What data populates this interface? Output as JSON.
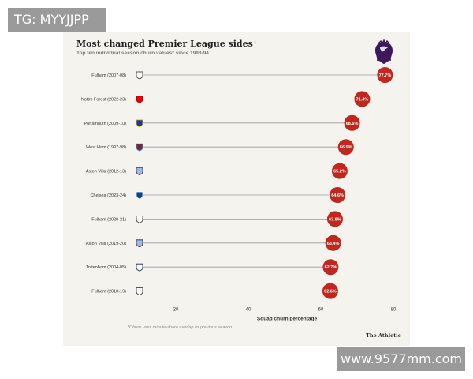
{
  "watermarks": {
    "top_left": "TG: MYYJJPP",
    "bottom_right": "www.9577mm.com"
  },
  "chart_data": {
    "type": "dot",
    "title": "Most changed Premier League sides",
    "subtitle": "Top ten individual season churn values* since 1993-94",
    "xlabel": "Squad churn percentage",
    "xlim": [
      0,
      80
    ],
    "xticks": [
      20,
      40,
      60,
      80
    ],
    "categories": [
      "Fulham (2007-08)",
      "Nottm Forest (2022-23)",
      "Portsmouth (2009-10)",
      "West Ham (1997-98)",
      "Aston Villa (2012-13)",
      "Chelsea (2023-24)",
      "Fulham (2020-21)",
      "Aston Villa (2019-20)",
      "Tottenham (2004-05)",
      "Fulham (2018-19)"
    ],
    "values": [
      77.7,
      71.4,
      68.6,
      66.9,
      65.2,
      64.6,
      63.9,
      63.4,
      62.7,
      62.6
    ],
    "value_labels": [
      "77.7%",
      "71.4%",
      "68.6%",
      "66.9%",
      "65.2%",
      "64.6%",
      "63.9%",
      "63.4%",
      "62.7%",
      "62.6%"
    ],
    "crests": [
      "fulham-crest-icon",
      "nottm-forest-crest-icon",
      "portsmouth-crest-icon",
      "west-ham-crest-icon",
      "aston-villa-crest-icon",
      "chelsea-crest-icon",
      "fulham-crest-icon",
      "aston-villa-crest-icon",
      "tottenham-crest-icon",
      "fulham-crest-icon"
    ],
    "footnote": "*Churn uses minute-share overlap vs previous season",
    "source": "The Athletic",
    "colors": {
      "dot": "#c0281f",
      "line": "#9a9a9a",
      "background": "#f4f3ee"
    }
  }
}
